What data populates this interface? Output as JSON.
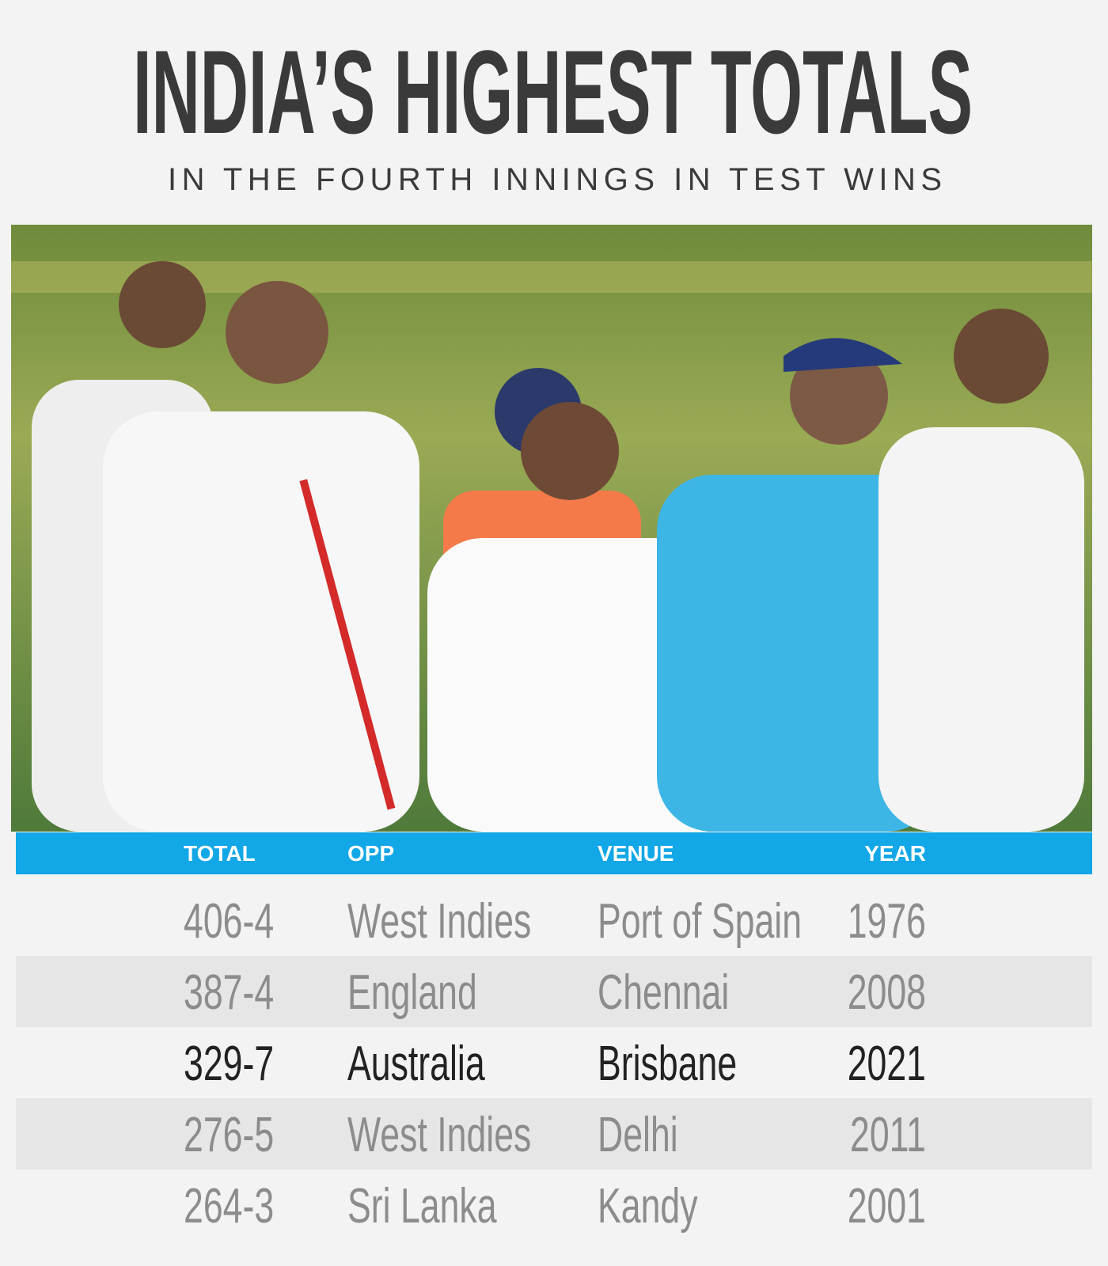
{
  "header": {
    "title": "INDIA’S HIGHEST TOTALS",
    "subtitle": "IN THE FOURTH INNINGS IN TEST WINS"
  },
  "table": {
    "columns": [
      "TOTAL",
      "OPP",
      "VENUE",
      "YEAR"
    ],
    "rows": [
      [
        "406-4",
        "West Indies",
        "Port of Spain",
        "1976"
      ],
      [
        "387-4",
        "England",
        "Chennai",
        "2008"
      ],
      [
        "329-7",
        "Australia",
        "Brisbane",
        "2021"
      ],
      [
        "276-5",
        "West Indies",
        "Delhi",
        "2011"
      ],
      [
        "264-3",
        "Sri Lanka",
        "Kandy",
        "2001"
      ]
    ]
  }
}
